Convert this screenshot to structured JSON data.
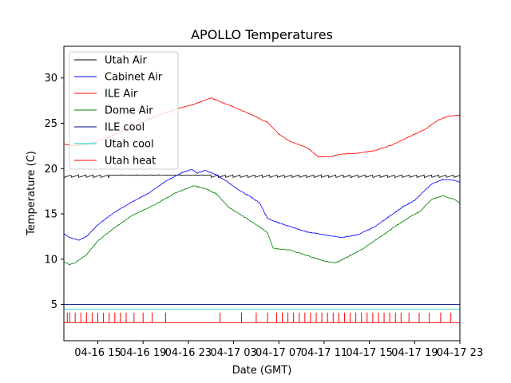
{
  "chart_data": {
    "type": "line",
    "title": "APOLLO Temperatures",
    "xlabel": "Date (GMT)",
    "ylabel": "Temperature (C)",
    "xlim": [
      12.0,
      47.0
    ],
    "ylim": [
      1.0,
      33.5
    ],
    "x_unit": "hours since 04-16 00:00 GMT",
    "x_ticks": [
      {
        "value": 15,
        "label": "04-16 15"
      },
      {
        "value": 19,
        "label": "04-16 19"
      },
      {
        "value": 23,
        "label": "04-16 23"
      },
      {
        "value": 27,
        "label": "04-17 03"
      },
      {
        "value": 31,
        "label": "04-17 07"
      },
      {
        "value": 35,
        "label": "04-17 11"
      },
      {
        "value": 39,
        "label": "04-17 15"
      },
      {
        "value": 43,
        "label": "04-17 19"
      },
      {
        "value": 47,
        "label": "04-17 23"
      }
    ],
    "y_ticks": [
      5,
      10,
      15,
      20,
      25,
      30
    ],
    "legend_position": "upper-left",
    "series": [
      {
        "name": "Utah Air",
        "color": "#000000",
        "style": "sawtooth",
        "cycle_hours": 0.65,
        "x": [
          12.0,
          47.0
        ],
        "y": [
          19.3,
          19.3
        ]
      },
      {
        "name": "Cabinet Air",
        "color": "#0000ff",
        "style": "line",
        "x": [
          12.0,
          12.5,
          13.3,
          14.0,
          15.0,
          16.5,
          18.0,
          19.5,
          21.0,
          22.5,
          23.3,
          23.8,
          24.5,
          25.5,
          26.5,
          27.5,
          28.5,
          29.3,
          30.0,
          31.0,
          32.0,
          33.5,
          35.0,
          36.5,
          38.0,
          39.5,
          40.5,
          42.0,
          43.0,
          44.5,
          45.5,
          46.5,
          47.0
        ],
        "y": [
          12.8,
          12.4,
          12.1,
          12.5,
          13.8,
          15.2,
          16.3,
          17.3,
          18.6,
          19.6,
          19.9,
          19.5,
          19.8,
          19.3,
          18.5,
          17.6,
          16.9,
          16.2,
          14.5,
          14.0,
          13.6,
          13.0,
          12.7,
          12.4,
          12.7,
          13.6,
          14.5,
          15.8,
          16.5,
          18.3,
          18.8,
          18.7,
          18.5
        ]
      },
      {
        "name": "ILE Air",
        "color": "#ff0000",
        "style": "line",
        "x": [
          12.0,
          13.0,
          14.5,
          16.0,
          18.0,
          20.0,
          22.0,
          23.5,
          25.0,
          26.0,
          27.0,
          28.5,
          30.0,
          31.0,
          32.0,
          33.5,
          34.5,
          35.5,
          36.5,
          38.0,
          39.5,
          41.0,
          42.0,
          43.0,
          44.0,
          45.0,
          46.0,
          47.0
        ],
        "y": [
          22.7,
          22.5,
          22.8,
          23.5,
          24.6,
          25.7,
          26.6,
          27.1,
          27.8,
          27.3,
          26.8,
          26.0,
          25.1,
          23.8,
          23.0,
          22.3,
          21.3,
          21.3,
          21.6,
          21.7,
          22.0,
          22.6,
          23.2,
          23.8,
          24.4,
          25.3,
          25.8,
          25.9
        ]
      },
      {
        "name": "Dome Air",
        "color": "#008000",
        "style": "line",
        "x": [
          12.0,
          12.5,
          13.0,
          14.0,
          15.0,
          16.5,
          18.0,
          20.0,
          22.0,
          23.5,
          24.5,
          25.5,
          26.5,
          27.5,
          28.5,
          29.5,
          30.0,
          30.5,
          32.0,
          33.5,
          35.0,
          36.0,
          37.0,
          38.5,
          40.0,
          41.5,
          42.5,
          43.5,
          44.5,
          45.5,
          46.5,
          47.0
        ],
        "y": [
          9.7,
          9.4,
          9.6,
          10.5,
          12.0,
          13.5,
          14.8,
          16.0,
          17.4,
          18.1,
          17.8,
          17.2,
          15.8,
          15.0,
          14.2,
          13.4,
          12.9,
          11.2,
          11.0,
          10.4,
          9.8,
          9.6,
          10.2,
          11.2,
          12.5,
          13.8,
          14.6,
          15.3,
          16.6,
          17.0,
          16.6,
          16.2
        ]
      },
      {
        "name": "ILE cool",
        "color": "#00008b",
        "style": "line",
        "x": [
          12.0,
          47.0
        ],
        "y": [
          5.0,
          5.0
        ]
      },
      {
        "name": "Utah cool",
        "color": "#00ced1",
        "style": "line",
        "x": [
          12.0,
          47.0
        ],
        "y": [
          4.5,
          4.5
        ]
      },
      {
        "name": "Utah heat",
        "color": "#ff0000",
        "style": "spikes",
        "baseline": 3.0,
        "peak": 4.1,
        "x": [
          12.3,
          12.5,
          13.0,
          13.5,
          14.0,
          14.5,
          15.0,
          15.5,
          16.0,
          16.5,
          17.0,
          17.5,
          18.2,
          19.0,
          19.8,
          21.0,
          25.8,
          27.7,
          29.0,
          30.0,
          30.8,
          31.3,
          31.8,
          32.3,
          32.8,
          33.3,
          33.8,
          34.3,
          34.8,
          35.3,
          35.8,
          36.3,
          36.8,
          37.3,
          37.8,
          38.3,
          38.8,
          39.3,
          39.8,
          40.3,
          40.8,
          41.3,
          41.8,
          42.5,
          43.4,
          44.3,
          45.3,
          46.2
        ]
      }
    ]
  }
}
